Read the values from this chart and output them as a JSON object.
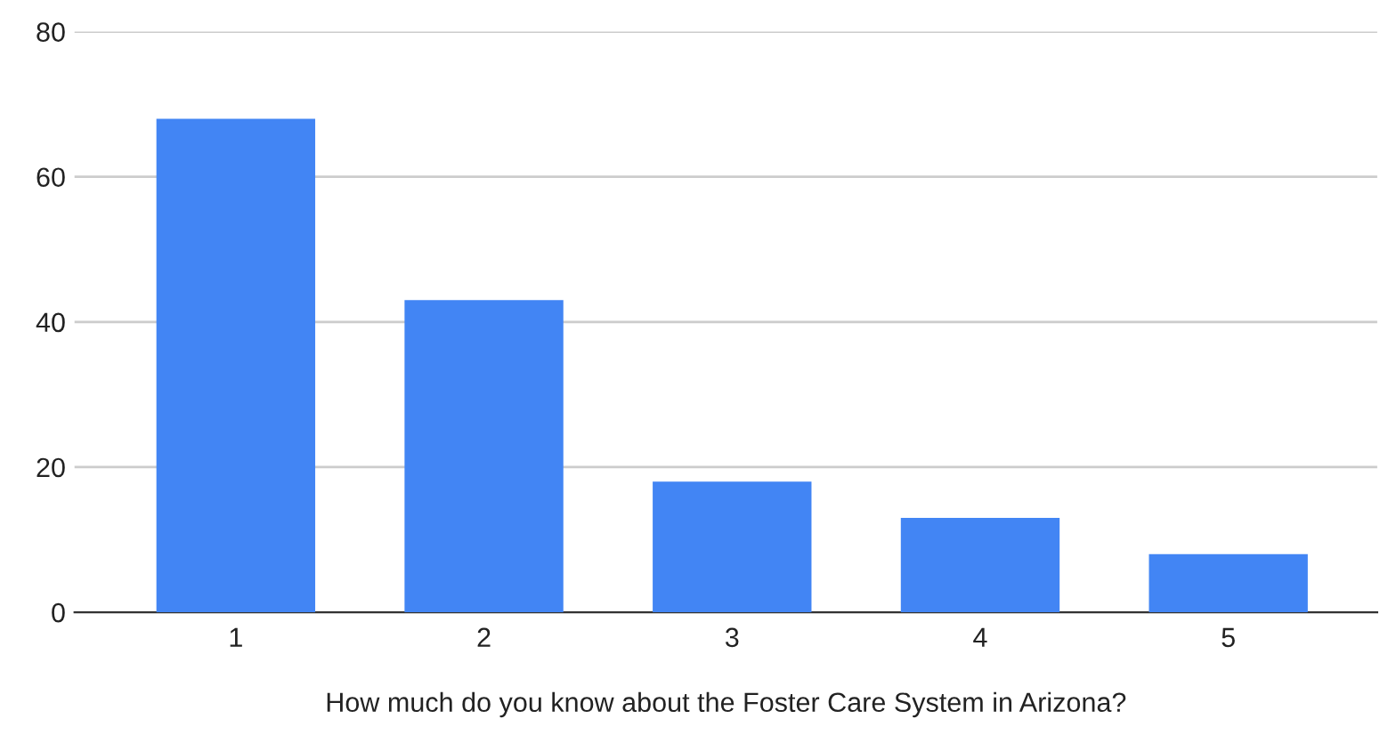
{
  "chart_data": {
    "type": "bar",
    "xlabel": "How much do you know about the Foster Care System in Arizona?",
    "categories": [
      "1",
      "2",
      "3",
      "4",
      "5"
    ],
    "values": [
      68,
      43,
      18,
      13,
      8
    ],
    "color": "#4285f4",
    "ylim": [
      0,
      80
    ],
    "yticks": [
      0,
      20,
      40,
      60,
      80
    ],
    "grid": "y"
  }
}
